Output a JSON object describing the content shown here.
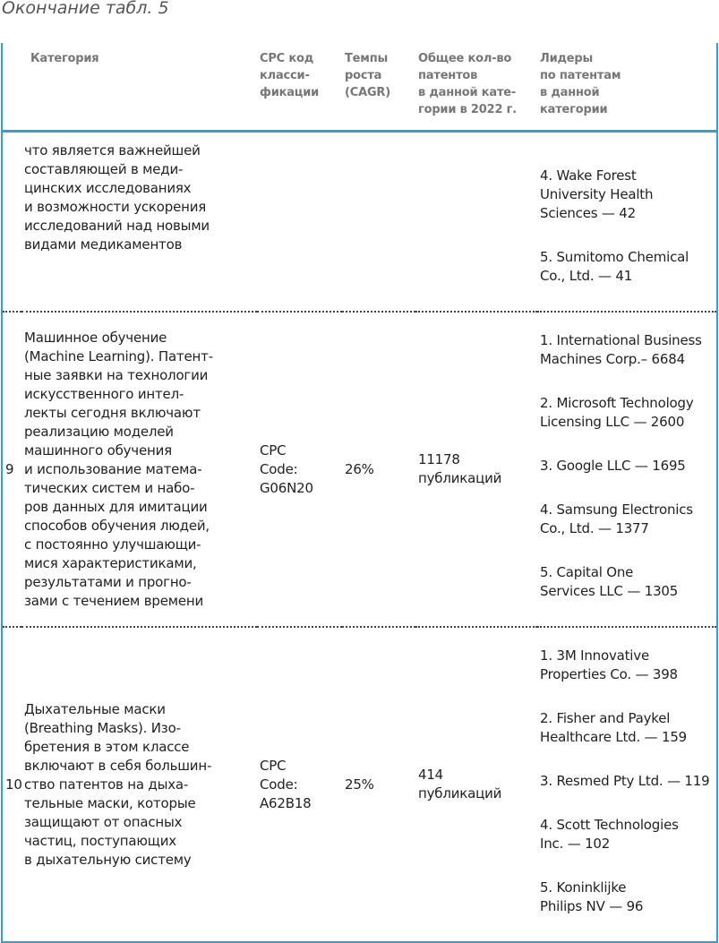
{
  "caption": "Окончание табл. 5",
  "headers": [
    "",
    "Категория",
    "CPC код\nкласси-\nфикации",
    "Темпы\nроста\n(CAGR)",
    "Общее кол-во\nпатентов\nв данной кате-\nгории в 2022 г.",
    "Лидеры\nпо патентам\nв данной\nкатегории"
  ],
  "rows": [
    {
      "num": "",
      "category": "что является важнейшей\nсоставляющей в меди-\nцинских исследованиях\nи возможности ускорения\nисследований над новыми\nвидами медикаментов",
      "cpc": "",
      "cagr": "",
      "total": "",
      "leaders": [
        "4. Wake Forest\nUniversity Health\nSciences — 42",
        "5. Sumitomo Chemical\nCo., Ltd. — 41"
      ]
    },
    {
      "num": "9",
      "category": "Машинное обучение\n(Machine Learning). Патент-\nные заявки на технологии\nискусственного интел-\nлекты сегодня включают\nреализацию моделей\nмашинного обучения\nи использование матема-\nтических систем и набо-\nров данных для имитации\nспособов обучения людей,\nс постоянно улучшающи-\nмися характеристиками,\nрезультатами и прогно-\nзами с течением времени",
      "cpc": "CPC\nCode:\nG06N20",
      "cagr": "26%",
      "total": "11178\nпубликаций",
      "leaders": [
        "1. International Business\nMachines Corp.– 6684",
        "2. Microsoft Technology\nLicensing LLC — 2600",
        "3. Google LLC — 1695",
        "4. Samsung Electronics\nCo., Ltd. — 1377",
        "5. Capital One\nServices LLC — 1305"
      ]
    },
    {
      "num": "10",
      "category": "Дыхательные маски\n(Breathing Masks). Изо-\nбретения в этом классе\nвключают в себя большин-\nство патентов на дыха-\nтельные маски, которые\nзащищают от опасных\nчастиц, поступающих\nв дыхательную систему",
      "cpc": "CPC\nCode:\nA62B18",
      "cagr": "25%",
      "total": "414\nпубликаций",
      "leaders": [
        "1. 3M Innovative\nProperties Co. — 398",
        "2. Fisher and Paykel\nHealthcare Ltd. — 159",
        "3. Resmed Pty Ltd. — 119",
        "4. Scott Technologies\nInc. — 102",
        "5. Koninklijke\nPhilips NV — 96"
      ]
    }
  ]
}
